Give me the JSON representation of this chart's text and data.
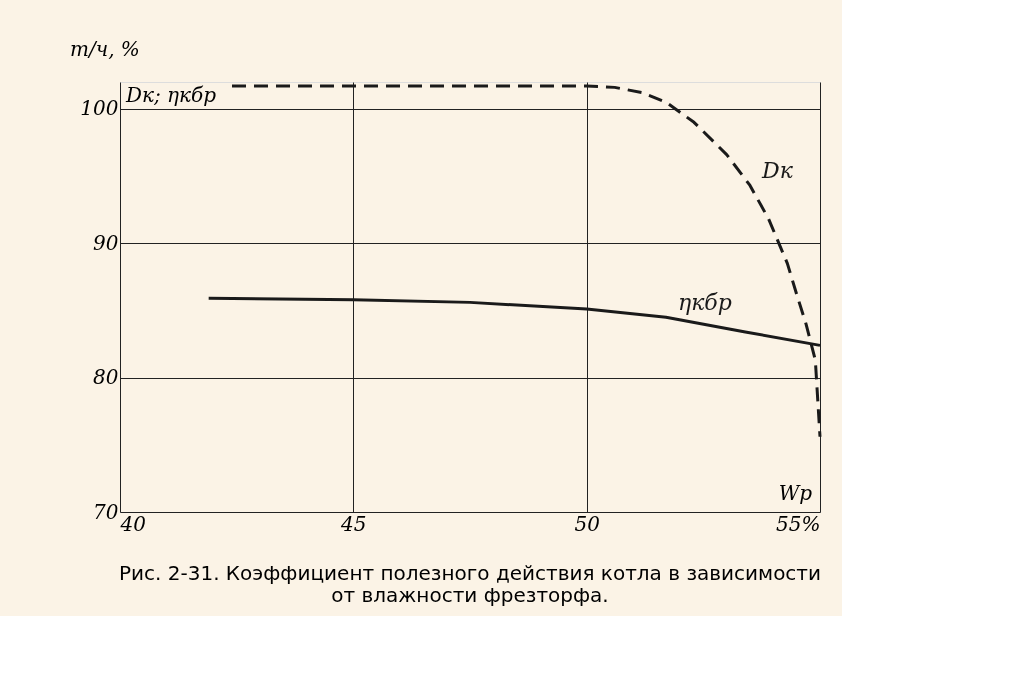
{
  "chart_data": {
    "type": "line",
    "xlabel": "Wр",
    "ylabel": "т/ч, %",
    "annotations": [
      "Dк; ηкбр",
      "Рис. 2-31. Коэффициент полезного действия котла в зависимости от влажности фрезторфа."
    ],
    "series": [
      {
        "name": "Dк",
        "color": "#1a1a1a",
        "line_style": "dashed",
        "x": [
          42.4,
          45,
          48,
          50,
          50.6,
          51.2,
          51.7,
          52.3,
          53,
          53.5,
          53.9,
          54.3,
          54.5,
          54.7,
          54.9,
          55
        ],
        "values": [
          101.7,
          101.7,
          101.7,
          101.7,
          101.6,
          101.2,
          100.5,
          99.0,
          96.6,
          94.3,
          91.8,
          88.5,
          86.2,
          84,
          81.3,
          75.6
        ]
      },
      {
        "name": "ηкбр",
        "color": "#1a1a1a",
        "line_style": "solid",
        "x": [
          41.9,
          45,
          47.5,
          50,
          51.7,
          53.4,
          55
        ],
        "values": [
          85.9,
          85.8,
          85.6,
          85.1,
          84.5,
          83.4,
          82.4
        ]
      }
    ],
    "xlim": [
      40,
      55
    ],
    "xticks": [
      40,
      45,
      50,
      {
        "value": 55,
        "label": "55%"
      }
    ],
    "ylim": [
      70,
      102
    ],
    "yticks": [
      70,
      80,
      90,
      100
    ],
    "grid": true,
    "marker": "none"
  }
}
